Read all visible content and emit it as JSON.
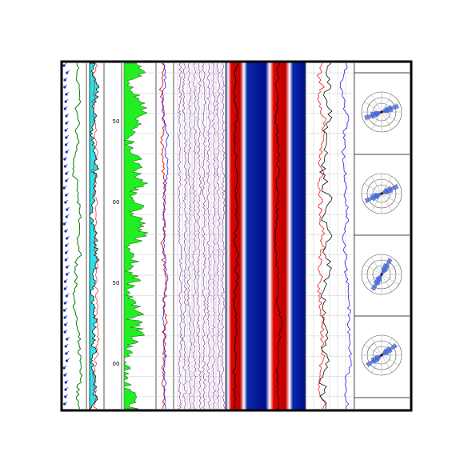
{
  "depth_track": {
    "labels": [
      "50",
      "00",
      "50",
      "00"
    ]
  }
}
